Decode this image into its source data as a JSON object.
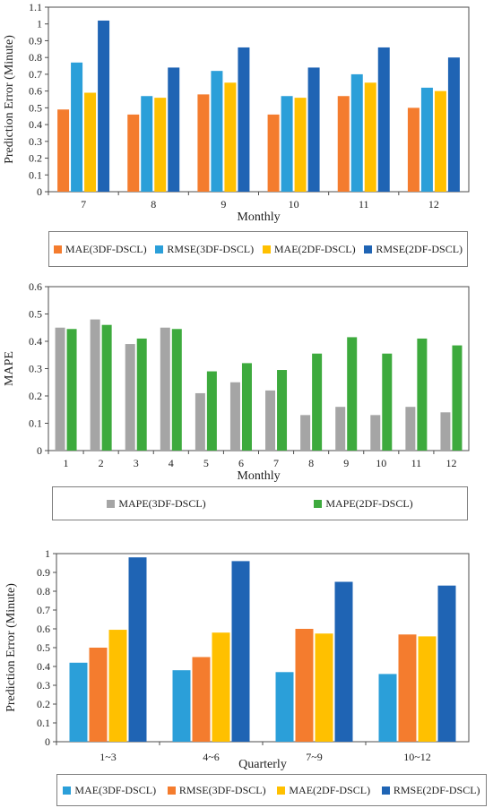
{
  "chart_data": [
    {
      "type": "bar",
      "title": "",
      "xlabel": "Monthly",
      "ylabel": "Prediction Error (Minute)",
      "categories": [
        "7",
        "8",
        "9",
        "10",
        "11",
        "12"
      ],
      "ylim": [
        0,
        1.1
      ],
      "yticks": [
        "0",
        "0.1",
        "0.2",
        "0.3",
        "0.4",
        "0.5",
        "0.6",
        "0.7",
        "0.8",
        "0.9",
        "1",
        "1.1"
      ],
      "grid": false,
      "legend_position": "bottom",
      "series": [
        {
          "name": "MAE(3DF-DSCL)",
          "color": "#f47c2e",
          "values": [
            0.49,
            0.46,
            0.58,
            0.46,
            0.57,
            0.5
          ]
        },
        {
          "name": "RMSE(3DF-DSCL)",
          "color": "#2b9fd9",
          "values": [
            0.77,
            0.57,
            0.72,
            0.57,
            0.7,
            0.62
          ]
        },
        {
          "name": "MAE(2DF-DSCL)",
          "color": "#ffc000",
          "values": [
            0.59,
            0.56,
            0.65,
            0.56,
            0.65,
            0.6
          ]
        },
        {
          "name": "RMSE(2DF-DSCL)",
          "color": "#1f64b4",
          "values": [
            1.02,
            0.74,
            0.86,
            0.74,
            0.86,
            0.8
          ]
        }
      ]
    },
    {
      "type": "bar",
      "title": "",
      "xlabel": "Monthly",
      "ylabel": "MAPE",
      "categories": [
        "1",
        "2",
        "3",
        "4",
        "5",
        "6",
        "7",
        "8",
        "9",
        "10",
        "11",
        "12"
      ],
      "ylim": [
        0,
        0.6
      ],
      "yticks": [
        "0",
        "0.1",
        "0.2",
        "0.3",
        "0.4",
        "0.5",
        "0.6"
      ],
      "grid": false,
      "legend_position": "bottom",
      "series": [
        {
          "name": "MAPE(3DF-DSCL)",
          "color": "#a5a5a5",
          "values": [
            0.45,
            0.48,
            0.39,
            0.45,
            0.21,
            0.25,
            0.22,
            0.13,
            0.16,
            0.13,
            0.16,
            0.14
          ]
        },
        {
          "name": "MAPE(2DF-DSCL)",
          "color": "#3daa3d",
          "values": [
            0.445,
            0.46,
            0.41,
            0.445,
            0.29,
            0.32,
            0.295,
            0.355,
            0.415,
            0.355,
            0.41,
            0.385
          ]
        }
      ]
    },
    {
      "type": "bar",
      "title": "",
      "xlabel": "Quarterly",
      "ylabel": "Prediction Error (Minute)",
      "categories": [
        "1~3",
        "4~6",
        "7~9",
        "10~12"
      ],
      "ylim": [
        0,
        1
      ],
      "yticks": [
        "0",
        "0.1",
        "0.2",
        "0.3",
        "0.4",
        "0.5",
        "0.6",
        "0.7",
        "0.8",
        "0.9",
        "1"
      ],
      "grid": false,
      "legend_position": "bottom",
      "series": [
        {
          "name": "MAE(3DF-DSCL)",
          "color": "#2b9fd9",
          "values": [
            0.42,
            0.38,
            0.37,
            0.36
          ]
        },
        {
          "name": "RMSE(3DF-DSCL)",
          "color": "#f47c2e",
          "values": [
            0.5,
            0.45,
            0.6,
            0.57
          ]
        },
        {
          "name": "MAE(2DF-DSCL)",
          "color": "#ffc000",
          "values": [
            0.595,
            0.58,
            0.575,
            0.56
          ]
        },
        {
          "name": "RMSE(2DF-DSCL)",
          "color": "#1f64b4",
          "values": [
            0.98,
            0.96,
            0.85,
            0.83
          ]
        }
      ]
    }
  ]
}
